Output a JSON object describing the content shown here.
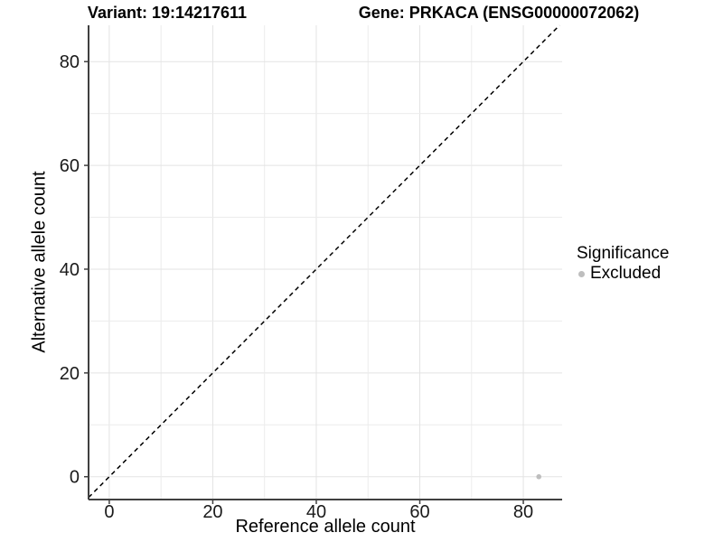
{
  "chart_data": {
    "type": "scatter",
    "titles": {
      "left": "Variant: 19:14217611",
      "right": "Gene: PRKACA (ENSG00000072062)"
    },
    "xlabel": "Reference allele count",
    "ylabel": "Alternative allele count",
    "xlim": [
      -4,
      87.5
    ],
    "ylim": [
      -4.4,
      87
    ],
    "xticks": [
      0,
      20,
      40,
      60,
      80
    ],
    "yticks": [
      0,
      20,
      40,
      60,
      80
    ],
    "grid": {
      "on": true,
      "step": 10,
      "major_every": 20,
      "major_color": "#e3e3e3",
      "minor_color": "#ececec"
    },
    "reference_line": {
      "slope": 1,
      "intercept": 0,
      "linetype": "dashed",
      "color": "#000000"
    },
    "series": [
      {
        "name": "Excluded",
        "color": "#bebebe",
        "points": [
          {
            "x": 83,
            "y": 0
          }
        ]
      }
    ],
    "legend": {
      "title": "Significance",
      "position": "right"
    },
    "style": {
      "axis_line_color": "#404040",
      "tick_label_color": "#1a1a1a",
      "background": "#ffffff"
    }
  }
}
